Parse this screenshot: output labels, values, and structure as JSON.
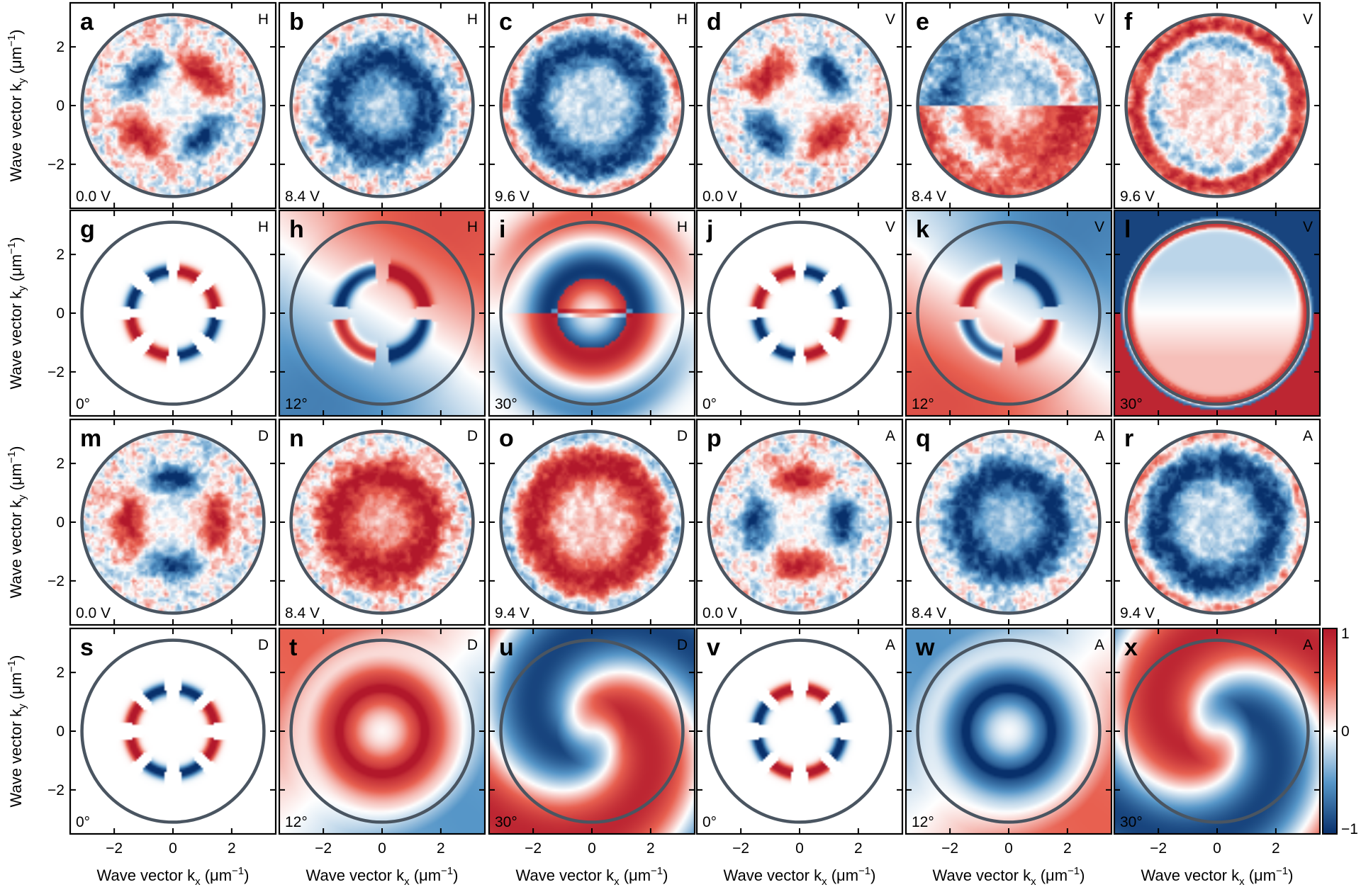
{
  "chart_data": {
    "type": "heatmap",
    "xlabel": "Wave vector k",
    "xlabel_sub": "x",
    "xlabel_unit": "(μm",
    "xlabel_unit_sup": "−1",
    "xlabel_unit_close": ")",
    "ylabel": "Wave vector k",
    "ylabel_sub": "y",
    "ylabel_unit": "(μm",
    "ylabel_unit_sup": "−1",
    "ylabel_unit_close": ")",
    "xlim": [
      -3.5,
      3.5
    ],
    "ylim": [
      -3.5,
      3.5
    ],
    "xticks": [
      -2,
      0,
      2
    ],
    "yticks": [
      2,
      0,
      -2
    ],
    "tick_labels_x": [
      "−2",
      "0",
      "2"
    ],
    "tick_labels_y": [
      "2",
      "0",
      "−2"
    ],
    "circle_radius": 3.1,
    "colorbar": {
      "range": [
        -1,
        1
      ],
      "tick_labels": [
        "1",
        "0",
        "−1"
      ],
      "colors": [
        "#b2182b",
        "#ffffff",
        "#08306b"
      ]
    },
    "rows": [
      {
        "kind": "experiment",
        "panels": [
          {
            "letter": "a",
            "polarization": "H",
            "corner_label": "0.0 V",
            "pattern": "quadrupole",
            "sign": 1,
            "angle": 45,
            "noise": 0.35
          },
          {
            "letter": "b",
            "polarization": "H",
            "corner_label": "8.4 V",
            "pattern": "ring",
            "sign": -1,
            "angle": 45,
            "noise": 0.35
          },
          {
            "letter": "c",
            "polarization": "H",
            "corner_label": "9.6 V",
            "pattern": "ring-outer",
            "sign": -1,
            "angle": 0,
            "noise": 0.3
          },
          {
            "letter": "d",
            "polarization": "V",
            "corner_label": "0.0 V",
            "pattern": "quadrupole",
            "sign": -1,
            "angle": 45,
            "noise": 0.35
          },
          {
            "letter": "e",
            "polarization": "V",
            "corner_label": "8.4 V",
            "pattern": "split",
            "sign": 1,
            "angle": 20,
            "noise": 0.3
          },
          {
            "letter": "f",
            "polarization": "V",
            "corner_label": "9.6 V",
            "pattern": "edge-ring",
            "sign": 1,
            "angle": 0,
            "noise": 0.3
          }
        ]
      },
      {
        "kind": "theory",
        "panels": [
          {
            "letter": "g",
            "polarization": "H",
            "corner_label": "0°",
            "pattern": "quadrupole-thin",
            "sign": 1,
            "angle": 45,
            "noise": 0
          },
          {
            "letter": "h",
            "polarization": "H",
            "corner_label": "12°",
            "pattern": "quadrupole-bg",
            "sign": 1,
            "angle": 45,
            "noise": 0
          },
          {
            "letter": "i",
            "polarization": "H",
            "corner_label": "30°",
            "pattern": "dipole-bands",
            "sign": 1,
            "angle": 0,
            "noise": 0
          },
          {
            "letter": "j",
            "polarization": "V",
            "corner_label": "0°",
            "pattern": "quadrupole-thin",
            "sign": -1,
            "angle": 45,
            "noise": 0
          },
          {
            "letter": "k",
            "polarization": "V",
            "corner_label": "12°",
            "pattern": "quadrupole-bg",
            "sign": -1,
            "angle": 45,
            "noise": 0
          },
          {
            "letter": "l",
            "polarization": "V",
            "corner_label": "30°",
            "pattern": "edge-ring-theory",
            "sign": 1,
            "angle": 0,
            "noise": 0
          }
        ]
      },
      {
        "kind": "experiment",
        "panels": [
          {
            "letter": "m",
            "polarization": "D",
            "corner_label": "0.0 V",
            "pattern": "quadrupole",
            "sign": 1,
            "angle": 0,
            "noise": 0.35
          },
          {
            "letter": "n",
            "polarization": "D",
            "corner_label": "8.4 V",
            "pattern": "ring",
            "sign": 1,
            "angle": 0,
            "noise": 0.35
          },
          {
            "letter": "o",
            "polarization": "D",
            "corner_label": "9.4 V",
            "pattern": "ring-outer",
            "sign": 1,
            "angle": 0,
            "noise": 0.3
          },
          {
            "letter": "p",
            "polarization": "A",
            "corner_label": "0.0 V",
            "pattern": "quadrupole",
            "sign": -1,
            "angle": 0,
            "noise": 0.35
          },
          {
            "letter": "q",
            "polarization": "A",
            "corner_label": "8.4 V",
            "pattern": "ring",
            "sign": -1,
            "angle": 0,
            "noise": 0.3
          },
          {
            "letter": "r",
            "polarization": "A",
            "corner_label": "9.4 V",
            "pattern": "ring-outer",
            "sign": -1,
            "angle": 0,
            "noise": 0.3
          }
        ]
      },
      {
        "kind": "theory",
        "panels": [
          {
            "letter": "s",
            "polarization": "D",
            "corner_label": "0°",
            "pattern": "quadrupole-thin",
            "sign": 1,
            "angle": 0,
            "noise": 0
          },
          {
            "letter": "t",
            "polarization": "D",
            "corner_label": "12°",
            "pattern": "ring-theory",
            "sign": 1,
            "angle": 0,
            "noise": 0
          },
          {
            "letter": "u",
            "polarization": "D",
            "corner_label": "30°",
            "pattern": "swirl",
            "sign": 1,
            "angle": 0,
            "noise": 0
          },
          {
            "letter": "v",
            "polarization": "A",
            "corner_label": "0°",
            "pattern": "quadrupole-thin",
            "sign": -1,
            "angle": 0,
            "noise": 0
          },
          {
            "letter": "w",
            "polarization": "A",
            "corner_label": "12°",
            "pattern": "ring-theory",
            "sign": -1,
            "angle": 0,
            "noise": 0
          },
          {
            "letter": "x",
            "polarization": "A",
            "corner_label": "30°",
            "pattern": "swirl",
            "sign": -1,
            "angle": 0,
            "noise": 0
          }
        ]
      }
    ]
  }
}
